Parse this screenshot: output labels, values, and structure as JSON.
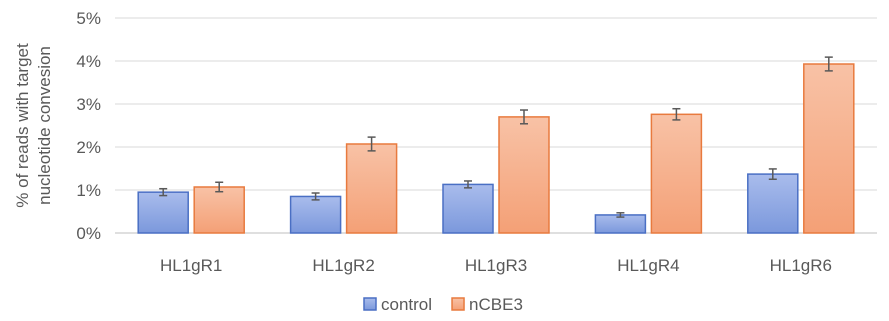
{
  "chart_data": {
    "type": "bar",
    "title": "",
    "xlabel": "",
    "ylabel_lines": [
      "% of reads with target",
      "nucleotide convesion"
    ],
    "categories": [
      "HL1gR1",
      "HL1gR2",
      "HL1gR3",
      "HL1gR4",
      "HL1gR6"
    ],
    "series": [
      {
        "name": "control",
        "values": [
          0.95,
          0.85,
          1.13,
          0.42,
          1.37
        ],
        "errors": [
          0.08,
          0.08,
          0.08,
          0.05,
          0.12
        ],
        "color": "#6f8fd6"
      },
      {
        "name": "nCBE3",
        "values": [
          1.07,
          2.07,
          2.7,
          2.76,
          3.93
        ],
        "errors": [
          0.11,
          0.16,
          0.16,
          0.13,
          0.16
        ],
        "color": "#f4a37a"
      }
    ],
    "ylim": [
      0,
      5
    ],
    "yticks": [
      "0%",
      "1%",
      "2%",
      "3%",
      "4%",
      "5%"
    ],
    "grid": true,
    "legend_position": "bottom"
  }
}
